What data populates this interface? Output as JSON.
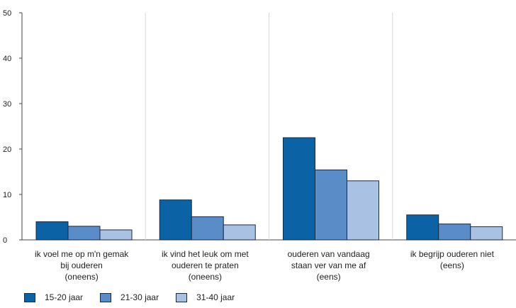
{
  "chart_data": {
    "type": "bar",
    "title": "",
    "xlabel": "",
    "ylabel": "",
    "ylim": [
      0,
      50
    ],
    "yticks": [
      "0",
      "10",
      "20",
      "30",
      "40",
      "50"
    ],
    "grid": "vertical separators between categories",
    "legend_position": "bottom-left",
    "categories": [
      [
        "ik voel me op m'n gemak",
        "bij ouderen",
        "(oneens)"
      ],
      [
        "ik vind het leuk om met",
        "ouderen te praten",
        "(oneens)"
      ],
      [
        "ouderen van vandaag",
        "staan ver van me af",
        "(eens)"
      ],
      [
        "ik begrijp ouderen niet",
        "(eens)"
      ]
    ],
    "series": [
      {
        "name": "15-20 jaar",
        "color": "#0b62a4",
        "values": [
          4.0,
          8.8,
          22.5,
          5.5
        ]
      },
      {
        "name": "21-30 jaar",
        "color": "#5a8cc8",
        "values": [
          3.0,
          5.1,
          15.4,
          3.5
        ]
      },
      {
        "name": "31-40 jaar",
        "color": "#a9c2e4",
        "values": [
          2.2,
          3.3,
          13.0,
          2.9
        ]
      }
    ]
  }
}
